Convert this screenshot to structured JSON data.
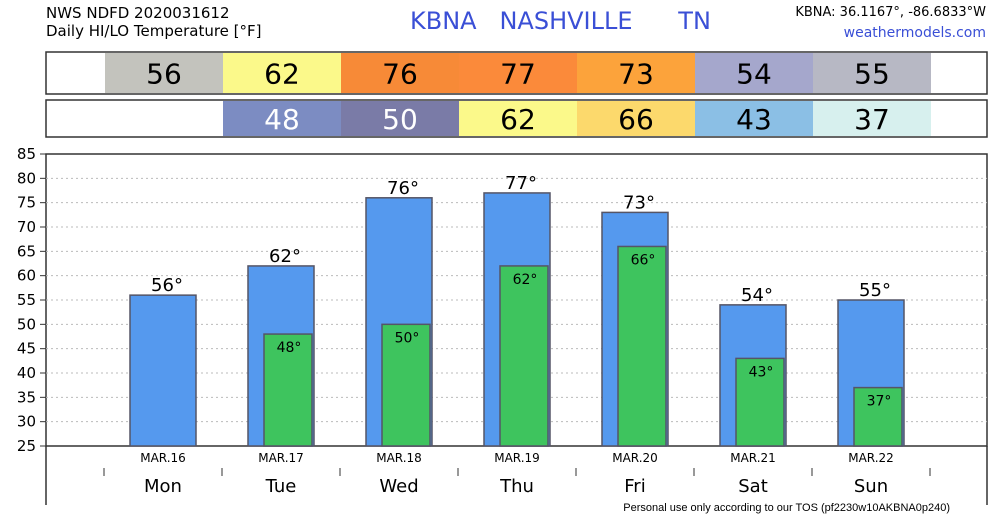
{
  "header": {
    "source": "NWS NDFD 2020031612",
    "subtitle": "Daily HI/LO Temperature [°F]",
    "station": "KBNA   NASHVILLE      TN",
    "coords": "KBNA: 36.1167°, -86.6833°W",
    "site": "weathermodels.com"
  },
  "footer": "Personal use only according to our TOS (pf2230w10AKBNA0p240)",
  "colors": {
    "hi_bar": "#5599ee",
    "lo_bar": "#3ec45e",
    "bar_stroke": "#555566",
    "grid": "#bbbbbb",
    "station_text": "#3a4fd6"
  },
  "hi_strip": {
    "cells": [
      {
        "value": "56",
        "color": "#c3c3bd"
      },
      {
        "value": "62",
        "color": "#fbf98a"
      },
      {
        "value": "76",
        "color": "#f78a37"
      },
      {
        "value": "77",
        "color": "#fb8a3a"
      },
      {
        "value": "73",
        "color": "#fca33b"
      },
      {
        "value": "54",
        "color": "#a5a7cc"
      },
      {
        "value": "55",
        "color": "#b7b8c4"
      }
    ]
  },
  "lo_strip": {
    "cells": [
      {
        "value": "",
        "color": "#ffffff"
      },
      {
        "value": "48",
        "color": "#7c8cc2",
        "text_color": "#ffffff"
      },
      {
        "value": "50",
        "color": "#7a7ba7",
        "text_color": "#ffffff"
      },
      {
        "value": "62",
        "color": "#fbf98a"
      },
      {
        "value": "66",
        "color": "#fcd96c"
      },
      {
        "value": "43",
        "color": "#8bbfe5"
      },
      {
        "value": "37",
        "color": "#d7f0ee"
      }
    ]
  },
  "chart_data": {
    "type": "bar",
    "categories": [
      "Mon",
      "Tue",
      "Wed",
      "Thu",
      "Fri",
      "Sat",
      "Sun"
    ],
    "dates": [
      "MAR.16",
      "MAR.17",
      "MAR.18",
      "MAR.19",
      "MAR.20",
      "MAR.21",
      "MAR.22"
    ],
    "series": [
      {
        "name": "HI",
        "values": [
          56,
          62,
          76,
          77,
          73,
          54,
          55
        ],
        "labels": [
          "56°",
          "62°",
          "76°",
          "77°",
          "73°",
          "54°",
          "55°"
        ]
      },
      {
        "name": "LO",
        "values": [
          null,
          48,
          50,
          62,
          66,
          43,
          37
        ],
        "labels": [
          "",
          "48°",
          "50°",
          "62°",
          "66°",
          "43°",
          "37°"
        ]
      }
    ],
    "ylim": [
      25,
      85
    ],
    "yticks": [
      "25",
      "30",
      "35",
      "40",
      "45",
      "50",
      "55",
      "60",
      "65",
      "70",
      "75",
      "80",
      "85"
    ],
    "grid": true,
    "legend": "none"
  }
}
